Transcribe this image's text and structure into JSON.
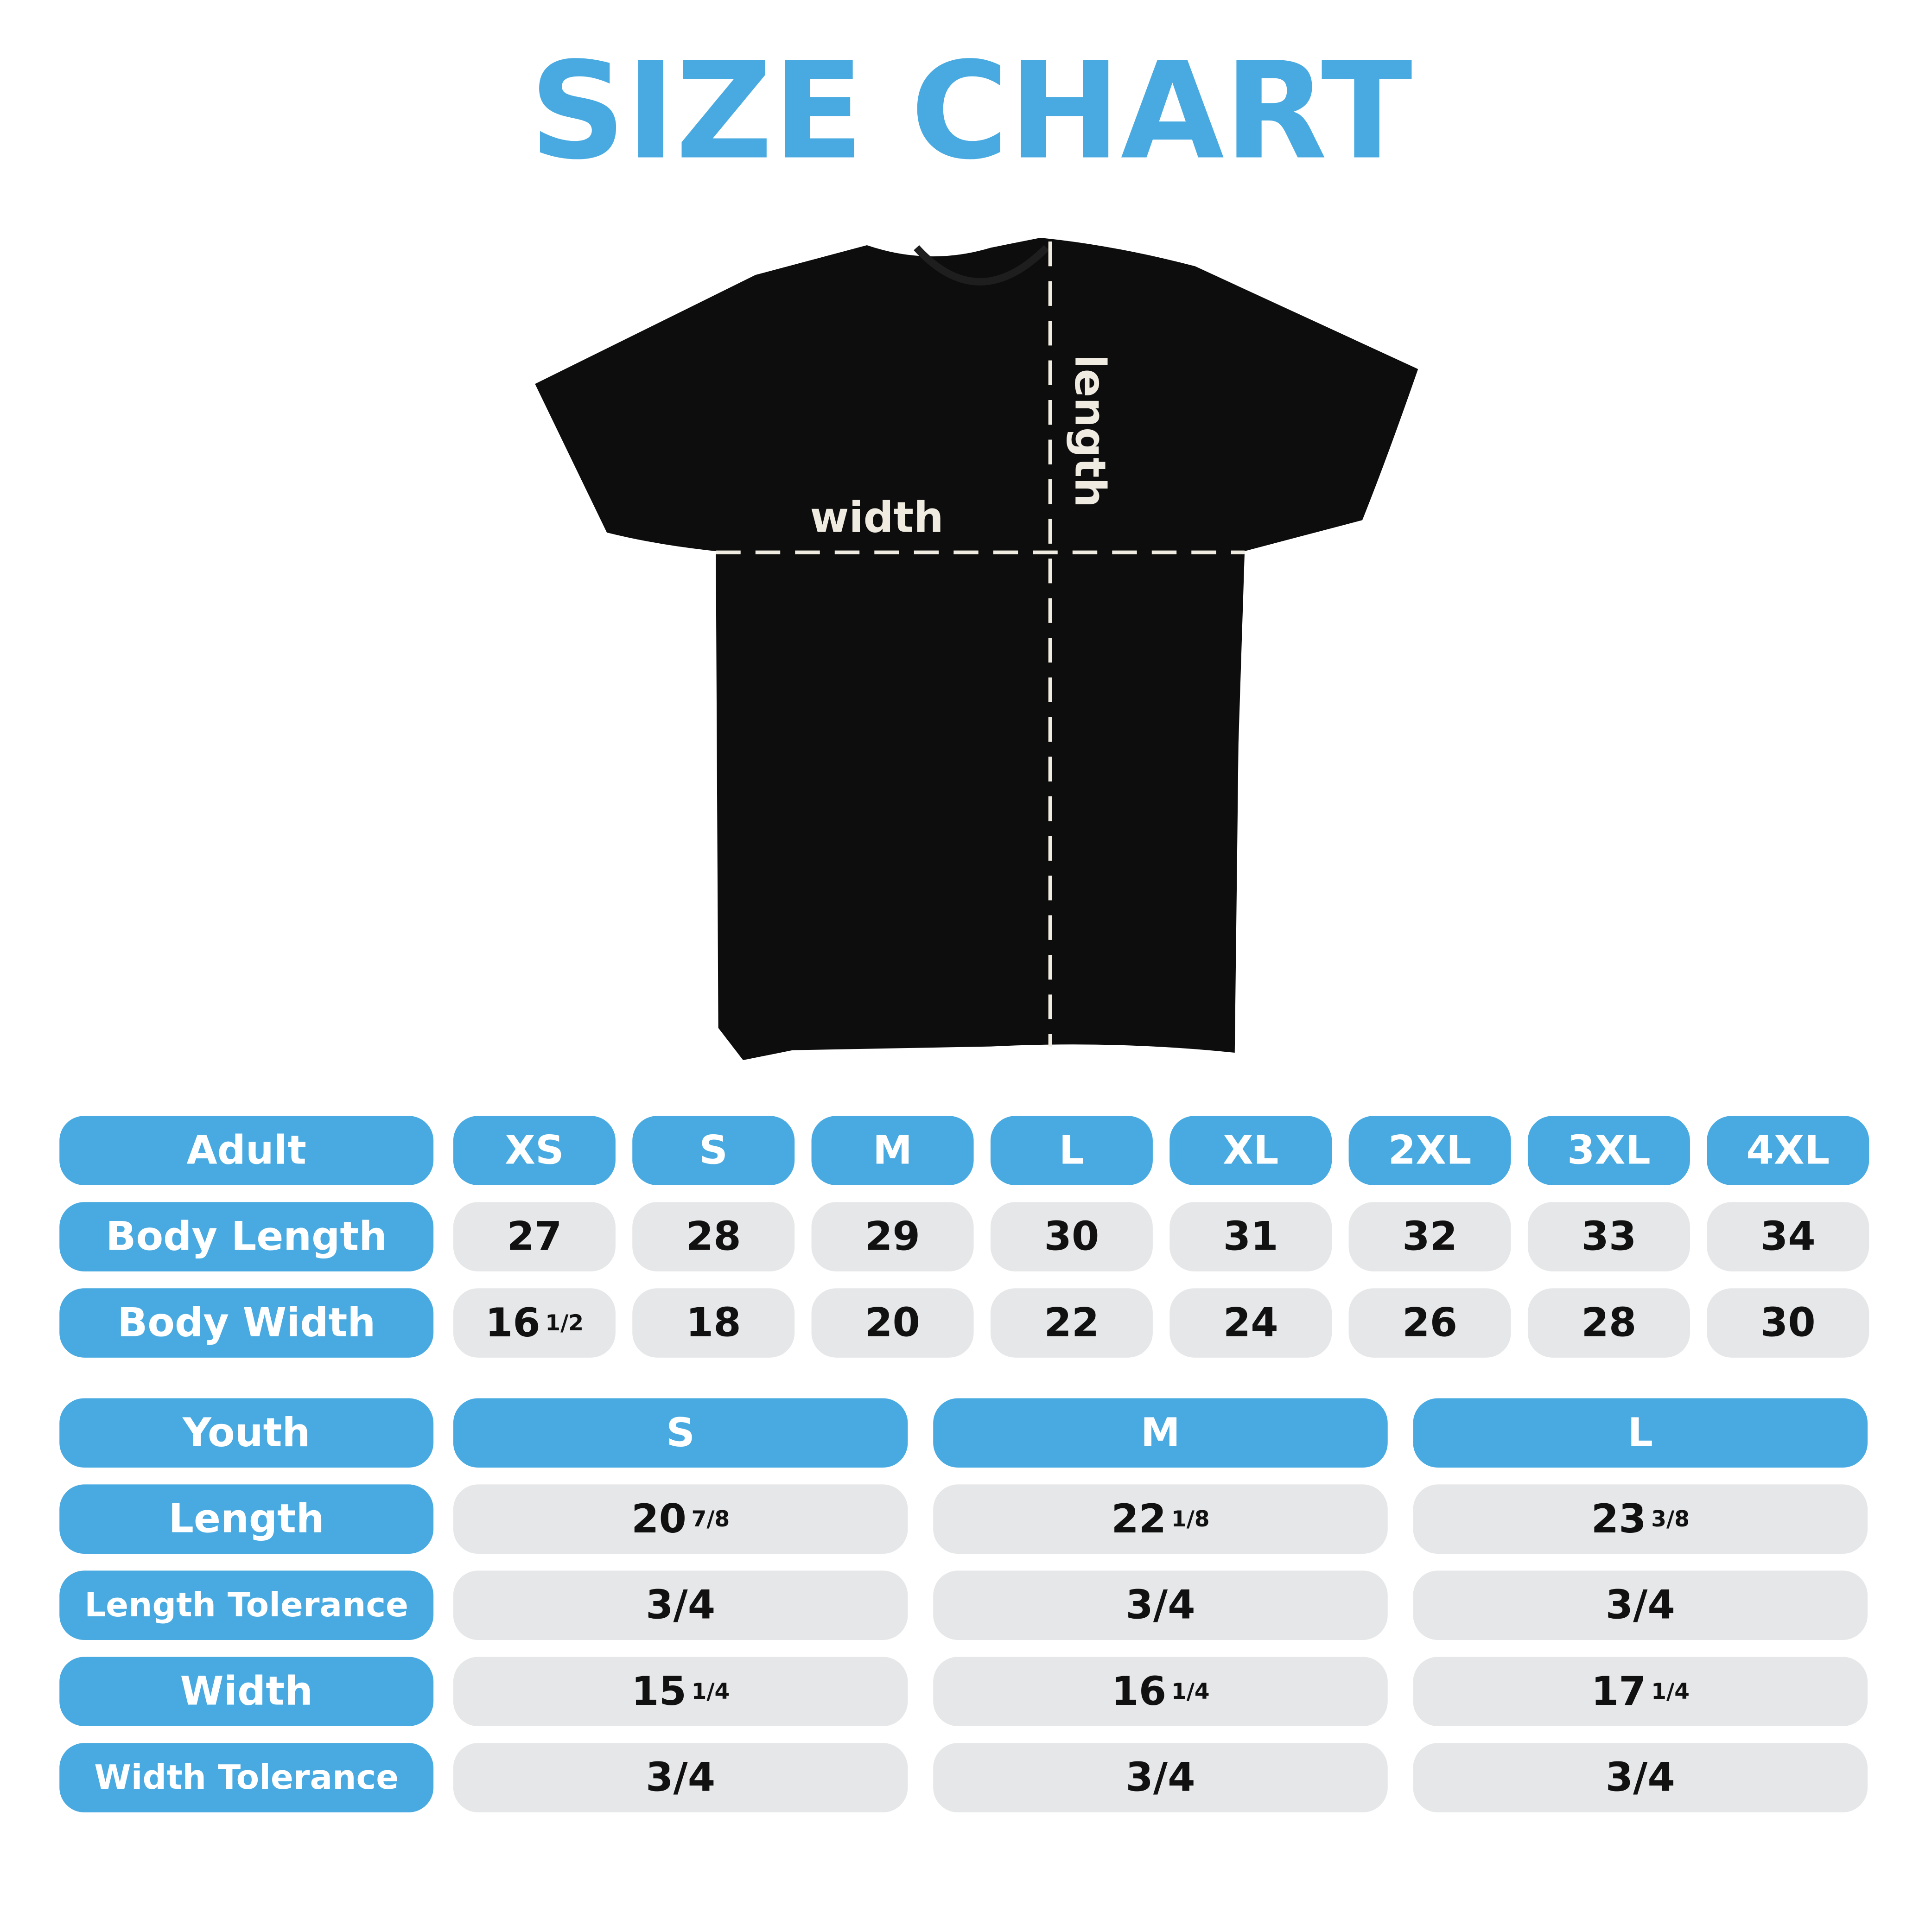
{
  "title": "SIZE CHART",
  "diagram": {
    "width_label": "width",
    "length_label": "length"
  },
  "adult": {
    "headers": [
      "Adult",
      "XS",
      "S",
      "M",
      "L",
      "XL",
      "2XL",
      "3XL",
      "4XL"
    ],
    "rows": [
      {
        "label": "Body Length",
        "values": [
          "27",
          "28",
          "29",
          "30",
          "31",
          "32",
          "33",
          "34"
        ]
      },
      {
        "label": "Body Width",
        "values": [
          {
            "whole": "16",
            "fraction": "1/2"
          },
          "18",
          "20",
          "22",
          "24",
          "26",
          "28",
          "30"
        ]
      }
    ]
  },
  "youth": {
    "headers": [
      "Youth",
      "S",
      "M",
      "L"
    ],
    "rows": [
      {
        "label": "Length",
        "values": [
          {
            "whole": "20",
            "fraction": "7/8"
          },
          {
            "whole": "22",
            "fraction": "1/8"
          },
          {
            "whole": "23",
            "fraction": "3/8"
          }
        ]
      },
      {
        "label": "Length Tolerance",
        "values": [
          "3/4",
          "3/4",
          "3/4"
        ]
      },
      {
        "label": "Width",
        "values": [
          {
            "whole": "15",
            "fraction": "1/4"
          },
          {
            "whole": "16",
            "fraction": "1/4"
          },
          {
            "whole": "17",
            "fraction": "1/4"
          }
        ]
      },
      {
        "label": "Width Tolerance",
        "values": [
          "3/4",
          "3/4",
          "3/4"
        ]
      }
    ]
  }
}
